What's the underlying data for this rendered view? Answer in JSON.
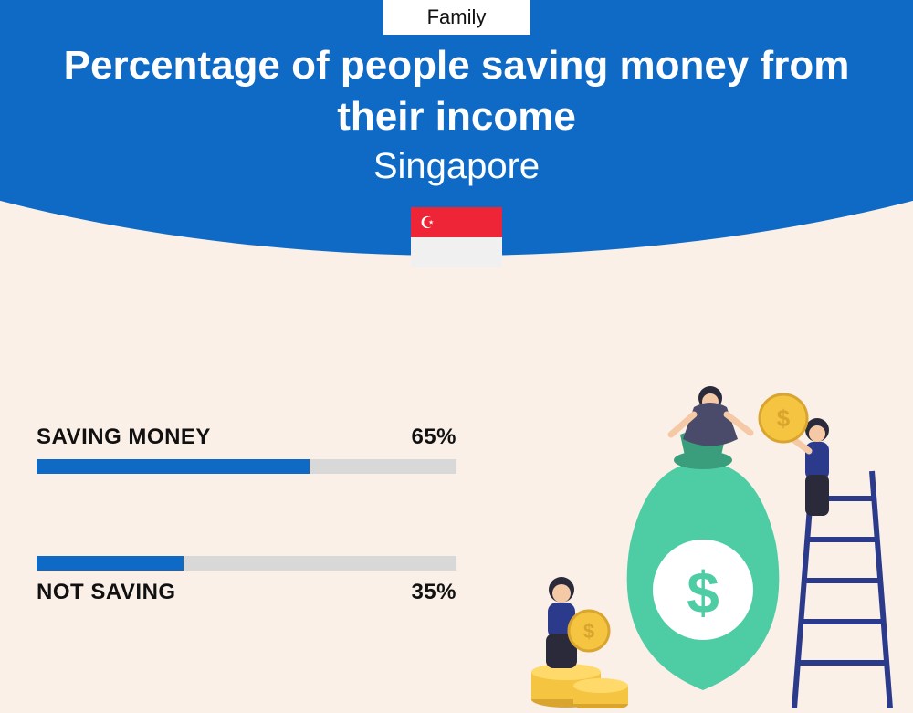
{
  "category": "Family",
  "title": "Percentage of people saving money from their income",
  "country": "Singapore",
  "flag": {
    "top_color": "#ee2536",
    "bottom_color": "#f0f0f0",
    "symbol_color": "#ffffff"
  },
  "colors": {
    "header_bg": "#0f6ac6",
    "page_bg": "#faf0e8",
    "bar_fill": "#0f6ac6",
    "bar_track": "#d8d8d8",
    "text_dark": "#111111",
    "text_light": "#ffffff"
  },
  "bars": [
    {
      "label": "SAVING MONEY",
      "value": 65,
      "value_text": "65%",
      "label_position": "above"
    },
    {
      "label": "NOT SAVING",
      "value": 35,
      "value_text": "35%",
      "label_position": "below"
    }
  ],
  "illustration": {
    "bag_color": "#4ecca3",
    "bag_dark": "#3a9e7d",
    "coin_color": "#f5c542",
    "coin_dark": "#d9a52e",
    "ladder_color": "#2b3a8a",
    "person_skin": "#f5c9a6",
    "person1_shirt": "#2b3a8a",
    "person2_shirt": "#4a4a6a",
    "person3_shirt": "#2b3a8a",
    "pants": "#2a2a3a"
  }
}
